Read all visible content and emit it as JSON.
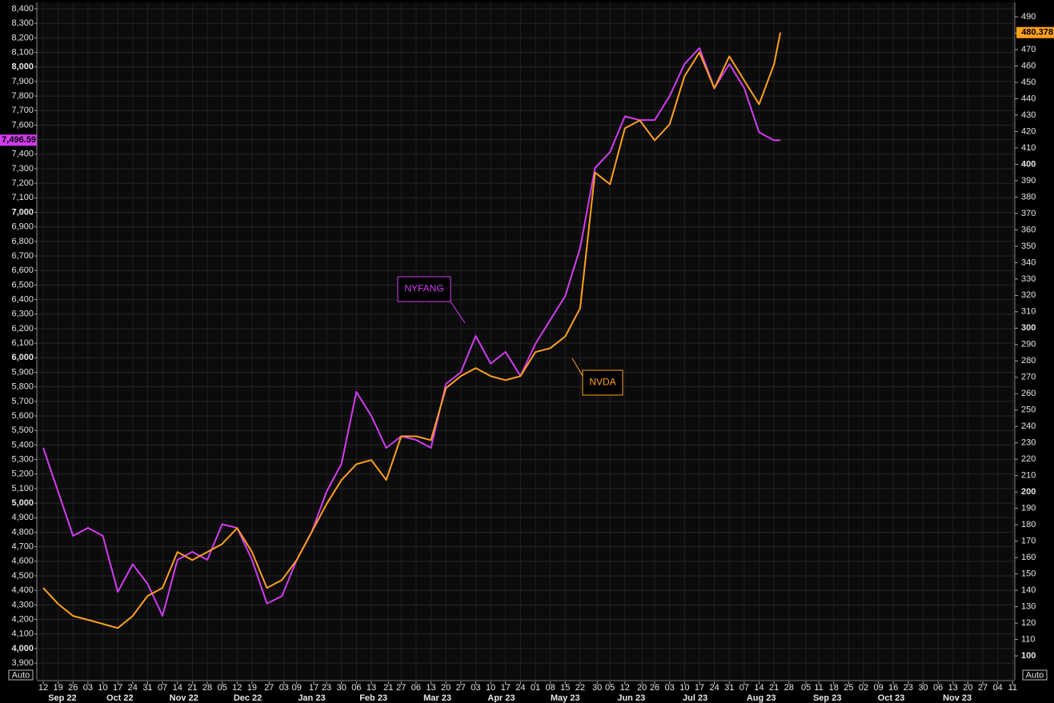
{
  "chart_data": {
    "type": "line",
    "x": [
      "2022-09-12",
      "2022-09-19",
      "2022-09-26",
      "2022-10-03",
      "2022-10-10",
      "2022-10-17",
      "2022-10-24",
      "2022-10-31",
      "2022-11-07",
      "2022-11-14",
      "2022-11-21",
      "2022-11-28",
      "2022-12-05",
      "2022-12-12",
      "2022-12-19",
      "2022-12-26",
      "2023-01-02",
      "2023-01-09",
      "2023-01-16",
      "2023-01-23",
      "2023-01-30",
      "2023-02-06",
      "2023-02-13",
      "2023-02-20",
      "2023-02-27",
      "2023-03-06",
      "2023-03-13",
      "2023-03-20",
      "2023-03-27",
      "2023-04-03",
      "2023-04-10",
      "2023-04-17",
      "2023-04-24",
      "2023-05-01",
      "2023-05-08",
      "2023-05-15",
      "2023-05-22",
      "2023-05-29",
      "2023-06-05",
      "2023-06-12",
      "2023-06-19",
      "2023-06-26",
      "2023-07-03",
      "2023-07-10",
      "2023-07-17",
      "2023-07-24",
      "2023-07-31",
      "2023-08-07",
      "2023-08-14",
      "2023-08-21",
      "2023-08-24"
    ],
    "series": [
      {
        "name": "NYFANG",
        "color": "#d23cf0",
        "values": [
          5380,
          5080,
          4775,
          4830,
          4775,
          4390,
          4580,
          4445,
          4225,
          4610,
          4665,
          4610,
          4855,
          4830,
          4610,
          4310,
          4360,
          4610,
          4800,
          5080,
          5270,
          5765,
          5600,
          5380,
          5460,
          5435,
          5380,
          5820,
          5900,
          6150,
          5960,
          6040,
          5875,
          6095,
          6260,
          6425,
          6755,
          7305,
          7415,
          7660,
          7635,
          7635,
          7800,
          8020,
          8130,
          7855,
          8020,
          7855,
          7550,
          7495,
          7496.59
        ],
        "value_labels": [
          null,
          null,
          null,
          null,
          null,
          null,
          null,
          null,
          null,
          null,
          null,
          null,
          null,
          null,
          null,
          null,
          null,
          null,
          null,
          null,
          null,
          null,
          null,
          null,
          null,
          null,
          null,
          null,
          null,
          null,
          null,
          null,
          null,
          null,
          null,
          null,
          null,
          null,
          null,
          null,
          null,
          null,
          null,
          null,
          null,
          null,
          null,
          null,
          null,
          null,
          "7,496.59"
        ]
      },
      {
        "name": "NVDA",
        "color": "#ffa01e",
        "axis": "y2",
        "values": [
          141.5,
          131.7,
          124.4,
          122,
          119.5,
          117,
          124.4,
          136.6,
          141.5,
          163.4,
          158.5,
          163.4,
          168.3,
          178,
          163.4,
          141.5,
          146.3,
          158.5,
          175.6,
          192.7,
          207.3,
          217,
          219.5,
          207.3,
          234,
          234,
          231.7,
          263.4,
          270.7,
          275.6,
          270.7,
          268.3,
          270.7,
          285.4,
          287.8,
          295,
          312.2,
          395,
          387.8,
          422,
          426.8,
          414.6,
          424.4,
          453.7,
          468.3,
          446.3,
          465.9,
          451.2,
          436.6,
          461,
          480.378
        ],
        "value_labels": [
          null,
          null,
          null,
          null,
          null,
          null,
          null,
          null,
          null,
          null,
          null,
          null,
          null,
          null,
          null,
          null,
          null,
          null,
          null,
          null,
          null,
          null,
          null,
          null,
          null,
          null,
          null,
          null,
          null,
          null,
          null,
          null,
          null,
          null,
          null,
          null,
          null,
          null,
          null,
          null,
          null,
          null,
          null,
          null,
          null,
          null,
          null,
          null,
          null,
          null,
          "480.378"
        ]
      }
    ],
    "xlim": [
      "2022-09-09",
      "2023-12-12"
    ],
    "xticks": [
      {
        "value": "2022-09-12",
        "label": "12"
      },
      {
        "value": "2022-09-19",
        "label": "19"
      },
      {
        "value": "2022-09-26",
        "label": "26"
      },
      {
        "value": "2022-10-03",
        "label": "03"
      },
      {
        "value": "2022-10-10",
        "label": "10"
      },
      {
        "value": "2022-10-17",
        "label": "17"
      },
      {
        "value": "2022-10-24",
        "label": "24"
      },
      {
        "value": "2022-10-31",
        "label": "31"
      },
      {
        "value": "2022-11-07",
        "label": "07"
      },
      {
        "value": "2022-11-14",
        "label": "14"
      },
      {
        "value": "2022-11-21",
        "label": "21"
      },
      {
        "value": "2022-11-28",
        "label": "28"
      },
      {
        "value": "2022-12-05",
        "label": "05"
      },
      {
        "value": "2022-12-12",
        "label": "12"
      },
      {
        "value": "2022-12-19",
        "label": "19"
      },
      {
        "value": "2022-12-27",
        "label": "27"
      },
      {
        "value": "2023-01-03",
        "label": "03"
      },
      {
        "value": "2023-01-09",
        "label": "09"
      },
      {
        "value": "2023-01-17",
        "label": "17"
      },
      {
        "value": "2023-01-23",
        "label": "23"
      },
      {
        "value": "2023-01-30",
        "label": "30"
      },
      {
        "value": "2023-02-06",
        "label": "06"
      },
      {
        "value": "2023-02-13",
        "label": "13"
      },
      {
        "value": "2023-02-21",
        "label": "21"
      },
      {
        "value": "2023-02-27",
        "label": "27"
      },
      {
        "value": "2023-03-06",
        "label": "06"
      },
      {
        "value": "2023-03-13",
        "label": "13"
      },
      {
        "value": "2023-03-20",
        "label": "20"
      },
      {
        "value": "2023-03-27",
        "label": "27"
      },
      {
        "value": "2023-04-03",
        "label": "03"
      },
      {
        "value": "2023-04-10",
        "label": "10"
      },
      {
        "value": "2023-04-17",
        "label": "17"
      },
      {
        "value": "2023-04-24",
        "label": "24"
      },
      {
        "value": "2023-05-01",
        "label": "01"
      },
      {
        "value": "2023-05-08",
        "label": "08"
      },
      {
        "value": "2023-05-15",
        "label": "15"
      },
      {
        "value": "2023-05-22",
        "label": "22"
      },
      {
        "value": "2023-05-30",
        "label": "30"
      },
      {
        "value": "2023-06-05",
        "label": "05"
      },
      {
        "value": "2023-06-12",
        "label": "12"
      },
      {
        "value": "2023-06-20",
        "label": "20"
      },
      {
        "value": "2023-06-26",
        "label": "26"
      },
      {
        "value": "2023-07-03",
        "label": "03"
      },
      {
        "value": "2023-07-10",
        "label": "10"
      },
      {
        "value": "2023-07-17",
        "label": "17"
      },
      {
        "value": "2023-07-24",
        "label": "24"
      },
      {
        "value": "2023-07-31",
        "label": "31"
      },
      {
        "value": "2023-08-07",
        "label": "07"
      },
      {
        "value": "2023-08-14",
        "label": "14"
      },
      {
        "value": "2023-08-21",
        "label": "21"
      },
      {
        "value": "2023-08-28",
        "label": "28"
      },
      {
        "value": "2023-09-05",
        "label": "05"
      },
      {
        "value": "2023-09-11",
        "label": "11"
      },
      {
        "value": "2023-09-18",
        "label": "18"
      },
      {
        "value": "2023-09-25",
        "label": "25"
      },
      {
        "value": "2023-10-02",
        "label": "02"
      },
      {
        "value": "2023-10-09",
        "label": "09"
      },
      {
        "value": "2023-10-16",
        "label": "16"
      },
      {
        "value": "2023-10-23",
        "label": "23"
      },
      {
        "value": "2023-10-30",
        "label": "30"
      },
      {
        "value": "2023-11-06",
        "label": "06"
      },
      {
        "value": "2023-11-13",
        "label": "13"
      },
      {
        "value": "2023-11-20",
        "label": "20"
      },
      {
        "value": "2023-11-27",
        "label": "27"
      },
      {
        "value": "2023-12-04",
        "label": "04"
      },
      {
        "value": "2023-12-11",
        "label": "11"
      }
    ],
    "months": [
      {
        "value": "2022-09-21",
        "label": "Sep 22"
      },
      {
        "value": "2022-10-18",
        "label": "Oct 22"
      },
      {
        "value": "2022-11-17",
        "label": "Nov 22"
      },
      {
        "value": "2022-12-17",
        "label": "Dec 22"
      },
      {
        "value": "2023-01-16",
        "label": "Jan 23"
      },
      {
        "value": "2023-02-14",
        "label": "Feb 23"
      },
      {
        "value": "2023-03-16",
        "label": "Mar 23"
      },
      {
        "value": "2023-04-15",
        "label": "Apr 23"
      },
      {
        "value": "2023-05-15",
        "label": "May 23"
      },
      {
        "value": "2023-06-15",
        "label": "Jun 23"
      },
      {
        "value": "2023-07-15",
        "label": "Jul 23"
      },
      {
        "value": "2023-08-15",
        "label": "Aug 23"
      },
      {
        "value": "2023-09-15",
        "label": "Sep 23"
      },
      {
        "value": "2023-10-15",
        "label": "Oct 23"
      },
      {
        "value": "2023-11-15",
        "label": "Nov 23"
      }
    ],
    "ylim": [
      3785,
      8444
    ],
    "yticks": [
      {
        "value": 3900,
        "label": "3,900"
      },
      {
        "value": 4000,
        "label": "4,000"
      },
      {
        "value": 4100,
        "label": "4,100"
      },
      {
        "value": 4200,
        "label": "4,200"
      },
      {
        "value": 4300,
        "label": "4,300"
      },
      {
        "value": 4400,
        "label": "4,400"
      },
      {
        "value": 4500,
        "label": "4,500"
      },
      {
        "value": 4600,
        "label": "4,600"
      },
      {
        "value": 4700,
        "label": "4,700"
      },
      {
        "value": 4800,
        "label": "4,800"
      },
      {
        "value": 4900,
        "label": "4,900"
      },
      {
        "value": 5000,
        "label": "5,000"
      },
      {
        "value": 5100,
        "label": "5,100"
      },
      {
        "value": 5200,
        "label": "5,200"
      },
      {
        "value": 5300,
        "label": "5,300"
      },
      {
        "value": 5400,
        "label": "5,400"
      },
      {
        "value": 5500,
        "label": "5,500"
      },
      {
        "value": 5600,
        "label": "5,600"
      },
      {
        "value": 5700,
        "label": "5,700"
      },
      {
        "value": 5800,
        "label": "5,800"
      },
      {
        "value": 5900,
        "label": "5,900"
      },
      {
        "value": 6000,
        "label": "6,000"
      },
      {
        "value": 6100,
        "label": "6,100"
      },
      {
        "value": 6200,
        "label": "6,200"
      },
      {
        "value": 6300,
        "label": "6,300"
      },
      {
        "value": 6400,
        "label": "6,400"
      },
      {
        "value": 6500,
        "label": "6,500"
      },
      {
        "value": 6600,
        "label": "6,600"
      },
      {
        "value": 6700,
        "label": "6,700"
      },
      {
        "value": 6800,
        "label": "6,800"
      },
      {
        "value": 6900,
        "label": "6,900"
      },
      {
        "value": 7000,
        "label": "7,000"
      },
      {
        "value": 7100,
        "label": "7,100"
      },
      {
        "value": 7200,
        "label": "7,200"
      },
      {
        "value": 7300,
        "label": "7,300"
      },
      {
        "value": 7400,
        "label": "7,400"
      },
      {
        "value": 7500,
        "label": "7,500"
      },
      {
        "value": 7600,
        "label": "7,600"
      },
      {
        "value": 7700,
        "label": "7,700"
      },
      {
        "value": 7800,
        "label": "7,800"
      },
      {
        "value": 7900,
        "label": "7,900"
      },
      {
        "value": 8000,
        "label": "8,000"
      },
      {
        "value": 8100,
        "label": "8,100"
      },
      {
        "value": 8200,
        "label": "8,200"
      },
      {
        "value": 8300,
        "label": "8,300"
      },
      {
        "value": 8400,
        "label": "8,400"
      }
    ],
    "y2lim": [
      85.4,
      498.8
    ],
    "y2ticks": [
      100,
      110,
      120,
      130,
      140,
      150,
      160,
      170,
      180,
      190,
      200,
      210,
      220,
      230,
      240,
      250,
      260,
      270,
      280,
      290,
      300,
      310,
      320,
      330,
      340,
      350,
      360,
      370,
      380,
      390,
      400,
      410,
      420,
      430,
      440,
      450,
      460,
      470,
      480,
      490
    ],
    "grid": true,
    "axis_buttons": [
      "Auto",
      "Auto"
    ]
  }
}
